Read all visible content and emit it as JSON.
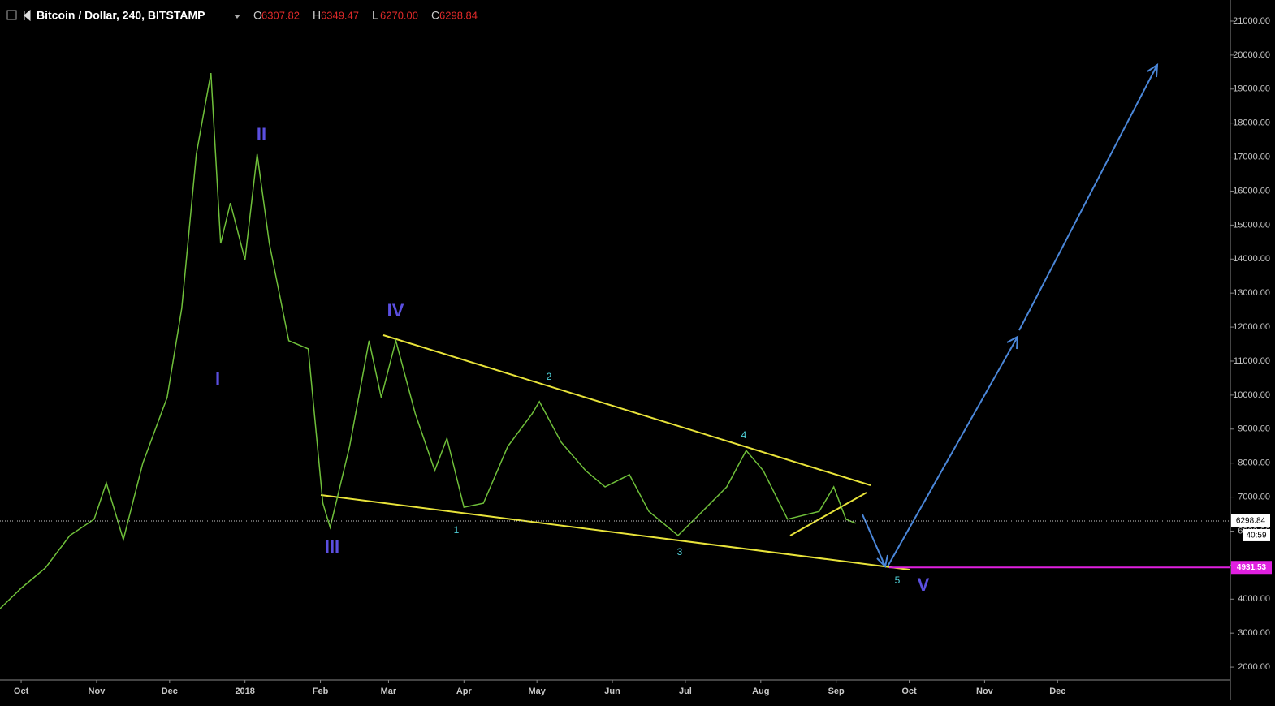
{
  "chart_data": {
    "type": "line",
    "title": "Bitcoin / Dollar, 240, BITSTAMP",
    "ohlc": {
      "names": [
        "O",
        "H",
        "L",
        "C"
      ],
      "values": [
        6307.82,
        6349.47,
        6270,
        6298.84
      ],
      "value_labels": [
        "6307.82",
        "6349.47",
        "6270.00",
        "6298.84"
      ]
    },
    "x": [
      -8.7,
      0,
      10,
      20,
      30,
      35,
      42,
      50,
      60,
      66,
      72,
      78,
      82,
      86,
      92,
      97,
      102,
      110,
      118,
      124,
      127,
      135,
      143,
      148,
      154,
      162,
      170,
      175,
      182,
      190,
      200,
      210,
      213,
      222,
      232,
      240,
      250,
      258,
      270,
      280,
      290,
      298,
      305,
      315,
      328,
      334,
      339,
      343
    ],
    "series": [
      {
        "color": "#6fbf3a",
        "values": [
          3720,
          4320,
          4920,
          5870,
          6350,
          7420,
          5750,
          8000,
          9930,
          12550,
          17090,
          19470,
          14460,
          15650,
          13980,
          17090,
          14460,
          11600,
          11360,
          6820,
          6110,
          8490,
          11600,
          9930,
          11600,
          9450,
          7780,
          8730,
          6700,
          6820,
          8490,
          9450,
          9810,
          8610,
          7780,
          7300,
          7660,
          6580,
          5870,
          6580,
          7300,
          8370,
          7780,
          6350,
          6580,
          7300,
          6350,
          6230
        ]
      }
    ],
    "xlim": [
      -8.7,
      497
    ],
    "xticks": [
      {
        "value": 0,
        "label": "Oct"
      },
      {
        "value": 31,
        "label": "Nov"
      },
      {
        "value": 61,
        "label": "Dec"
      },
      {
        "value": 92,
        "label": "2018"
      },
      {
        "value": 123,
        "label": "Feb"
      },
      {
        "value": 151,
        "label": "Mar"
      },
      {
        "value": 182,
        "label": "Apr"
      },
      {
        "value": 212,
        "label": "May"
      },
      {
        "value": 243,
        "label": "Jun"
      },
      {
        "value": 273,
        "label": "Jul"
      },
      {
        "value": 304,
        "label": "Aug"
      },
      {
        "value": 335,
        "label": "Sep"
      },
      {
        "value": 365,
        "label": "Oct"
      },
      {
        "value": 396,
        "label": "Nov"
      },
      {
        "value": 426,
        "label": "Dec"
      }
    ],
    "ylim": [
      1620,
      21620
    ],
    "yticks": [
      {
        "value": 2000,
        "label": "2000.00"
      },
      {
        "value": 3000,
        "label": "3000.00"
      },
      {
        "value": 4000,
        "label": "4000.00"
      },
      {
        "value": 5000,
        "label": "5000.00"
      },
      {
        "value": 6000,
        "label": "6000.00"
      },
      {
        "value": 7000,
        "label": "7000.00"
      },
      {
        "value": 8000,
        "label": "8000.00"
      },
      {
        "value": 9000,
        "label": "9000.00"
      },
      {
        "value": 10000,
        "label": "10000.00"
      },
      {
        "value": 11000,
        "label": "11000.00"
      },
      {
        "value": 12000,
        "label": "12000.00"
      },
      {
        "value": 13000,
        "label": "13000.00"
      },
      {
        "value": 14000,
        "label": "14000.00"
      },
      {
        "value": 15000,
        "label": "15000.00"
      },
      {
        "value": 16000,
        "label": "16000.00"
      },
      {
        "value": 17000,
        "label": "17000.00"
      },
      {
        "value": 18000,
        "label": "18000.00"
      },
      {
        "value": 19000,
        "label": "19000.00"
      },
      {
        "value": 20000,
        "label": "20000.00"
      },
      {
        "value": 21000,
        "label": "21000.00"
      }
    ],
    "last_price": 6298.84,
    "countdown": "40:59",
    "target_level": 4931.53,
    "waves_major": [
      "I",
      "II",
      "III",
      "IV",
      "V"
    ],
    "waves_minor": [
      "1",
      "2",
      "3",
      "4",
      "5"
    ]
  }
}
